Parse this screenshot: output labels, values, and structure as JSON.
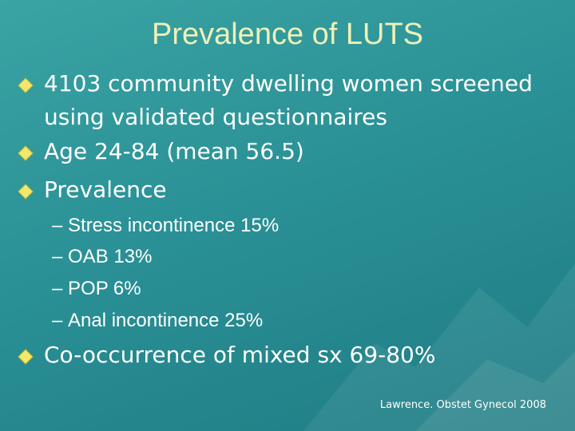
{
  "title": "Prevalence of LUTS",
  "bullets": [
    {
      "text": "4103 community dwelling women screened using validated questionnaires"
    },
    {
      "text": "Age 24-84 (mean 56.5)"
    },
    {
      "text": "Prevalence",
      "subitems": [
        "Stress incontinence 15%",
        "OAB 13%",
        "POP 6%",
        "Anal incontinence 25%"
      ]
    },
    {
      "text": "Co-occurrence of mixed sx 69-80%"
    }
  ],
  "citation": "Lawrence. Obstet Gynecol 2008"
}
